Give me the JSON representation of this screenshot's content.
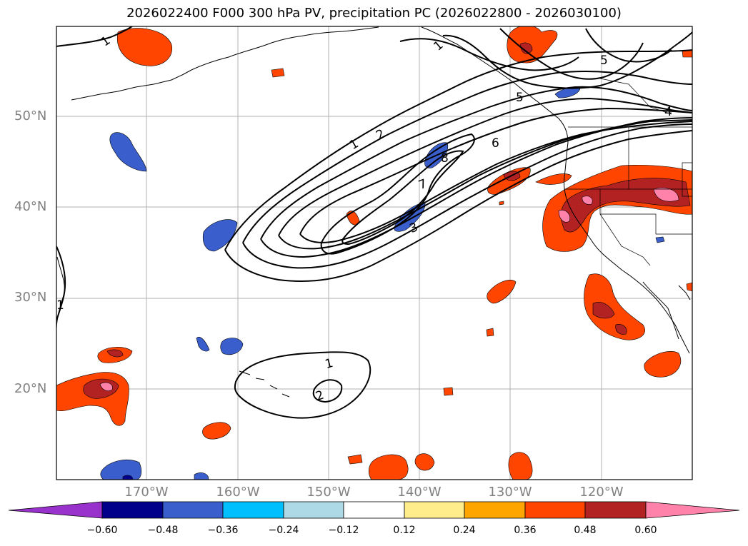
{
  "title": "2026022400 F000 300 hPa PV, precipitation PC (2026022800 - 2026030100)",
  "map": {
    "lat_labels": [
      "50°N",
      "40°N",
      "30°N",
      "20°N"
    ],
    "lon_labels": [
      "170°W",
      "160°W",
      "150°W",
      "140°W",
      "130°W",
      "120°W"
    ],
    "contour_labels": [
      "1",
      "1",
      "2",
      "8",
      "6",
      "5",
      "4",
      "5",
      "7",
      "3",
      "1",
      "2",
      "1",
      "1"
    ]
  },
  "colorbar": {
    "tick_labels": [
      "−0.60",
      "−0.48",
      "−0.36",
      "−0.24",
      "−0.12",
      "0.12",
      "0.24",
      "0.36",
      "0.48",
      "0.60"
    ],
    "colors": [
      "#9932cc",
      "#00008b",
      "#3a5fcd",
      "#00bfff",
      "#add8e6",
      "#ffffff",
      "#ffec8b",
      "#ffa500",
      "#ff4500",
      "#b22222",
      "#ff82ab",
      "#ff82ab"
    ]
  },
  "colors": {
    "pos_low": "#ffec8b",
    "pos_mid": "#ff4500",
    "pos_high": "#b22222",
    "pos_max": "#ff82ab",
    "neg_low": "#00bfff",
    "neg_mid": "#3a5fcd",
    "neg_high": "#00008b"
  }
}
